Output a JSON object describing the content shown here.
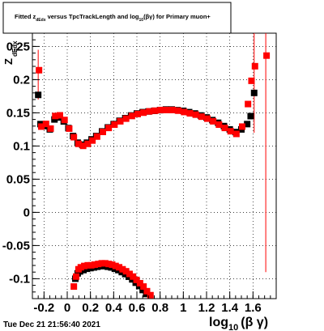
{
  "chart_data": {
    "type": "scatter",
    "title_parts": [
      "Fitted  z",
      "dEdx",
      "  versus TpcTrackLength and log",
      "10",
      "(βγ) for Primary muon+"
    ],
    "xlabel_main": "log",
    "xlabel_sub": "10",
    "xlabel_tail": "(β γ)",
    "ylabel_main": "Z",
    "ylabel_sub": "dEdx",
    "xlim": [
      -0.3,
      1.8
    ],
    "ylim": [
      -0.13,
      0.27
    ],
    "x_ticks": [
      "-0.2",
      "0",
      "0.2",
      "0.4",
      "0.6",
      "0.8",
      "1",
      "1.2",
      "1.4",
      "1.6"
    ],
    "x_tick_values": [
      -0.2,
      0,
      0.2,
      0.4,
      0.6,
      0.8,
      1.0,
      1.2,
      1.4,
      1.6
    ],
    "y_ticks": [
      "-0.1",
      "-0.05",
      "0",
      "0.05",
      "0.1",
      "0.15",
      "0.2",
      "0.25"
    ],
    "y_tick_values": [
      -0.1,
      -0.05,
      0,
      0.05,
      0.1,
      0.15,
      0.2,
      0.25
    ],
    "grid": true,
    "series": [
      {
        "color": "#000000",
        "points": [
          [
            -0.25,
            0.177
          ],
          [
            -0.23,
            0.133
          ],
          [
            -0.19,
            0.13
          ],
          [
            -0.15,
            0.125
          ],
          [
            -0.11,
            0.14
          ],
          [
            -0.07,
            0.143
          ],
          [
            -0.03,
            0.137
          ],
          [
            0.01,
            0.127
          ],
          [
            0.05,
            0.115
          ],
          [
            0.09,
            0.105
          ],
          [
            0.13,
            0.102
          ],
          [
            0.17,
            0.105
          ],
          [
            0.21,
            0.11
          ],
          [
            0.25,
            0.115
          ],
          [
            0.3,
            0.122
          ],
          [
            0.35,
            0.128
          ],
          [
            0.4,
            0.133
          ],
          [
            0.45,
            0.138
          ],
          [
            0.5,
            0.142
          ],
          [
            0.55,
            0.146
          ],
          [
            0.6,
            0.149
          ],
          [
            0.65,
            0.151
          ],
          [
            0.7,
            0.152
          ],
          [
            0.75,
            0.153
          ],
          [
            0.8,
            0.154
          ],
          [
            0.85,
            0.155
          ],
          [
            0.9,
            0.155
          ],
          [
            0.95,
            0.154
          ],
          [
            1.0,
            0.153
          ],
          [
            1.05,
            0.151
          ],
          [
            1.1,
            0.149
          ],
          [
            1.15,
            0.146
          ],
          [
            1.2,
            0.143
          ],
          [
            1.25,
            0.139
          ],
          [
            1.3,
            0.135
          ],
          [
            1.35,
            0.13
          ],
          [
            1.4,
            0.125
          ],
          [
            1.45,
            0.121
          ],
          [
            1.5,
            0.125
          ],
          [
            1.55,
            0.133
          ],
          [
            1.58,
            0.145
          ],
          [
            1.61,
            0.18
          ],
          [
            0.07,
            -0.1
          ],
          [
            0.09,
            -0.092
          ],
          [
            0.11,
            -0.089
          ],
          [
            0.14,
            -0.087
          ],
          [
            0.17,
            -0.085
          ],
          [
            0.2,
            -0.084
          ],
          [
            0.23,
            -0.083
          ],
          [
            0.26,
            -0.082
          ],
          [
            0.29,
            -0.081
          ],
          [
            0.32,
            -0.081
          ],
          [
            0.35,
            -0.082
          ],
          [
            0.38,
            -0.083
          ],
          [
            0.41,
            -0.085
          ],
          [
            0.44,
            -0.087
          ],
          [
            0.47,
            -0.09
          ],
          [
            0.5,
            -0.093
          ],
          [
            0.53,
            -0.097
          ],
          [
            0.56,
            -0.101
          ],
          [
            0.59,
            -0.106
          ],
          [
            0.62,
            -0.111
          ],
          [
            0.65,
            -0.117
          ],
          [
            0.68,
            -0.123
          ]
        ]
      },
      {
        "color": "#ff0000",
        "points": [
          [
            -0.25,
            0.213
          ],
          [
            -0.23,
            0.128
          ],
          [
            -0.19,
            0.132
          ],
          [
            -0.15,
            0.125
          ],
          [
            -0.11,
            0.144
          ],
          [
            -0.07,
            0.145
          ],
          [
            -0.03,
            0.138
          ],
          [
            0.01,
            0.125
          ],
          [
            0.05,
            0.112
          ],
          [
            0.09,
            0.102
          ],
          [
            0.13,
            0.099
          ],
          [
            0.17,
            0.102
          ],
          [
            0.21,
            0.107
          ],
          [
            0.25,
            0.113
          ],
          [
            0.3,
            0.12
          ],
          [
            0.35,
            0.126
          ],
          [
            0.4,
            0.131
          ],
          [
            0.45,
            0.136
          ],
          [
            0.5,
            0.14
          ],
          [
            0.55,
            0.144
          ],
          [
            0.6,
            0.147
          ],
          [
            0.65,
            0.149
          ],
          [
            0.7,
            0.151
          ],
          [
            0.75,
            0.152
          ],
          [
            0.8,
            0.153
          ],
          [
            0.85,
            0.153
          ],
          [
            0.9,
            0.153
          ],
          [
            0.95,
            0.152
          ],
          [
            1.0,
            0.15
          ],
          [
            1.05,
            0.148
          ],
          [
            1.1,
            0.146
          ],
          [
            1.15,
            0.143
          ],
          [
            1.2,
            0.14
          ],
          [
            1.25,
            0.136
          ],
          [
            1.3,
            0.131
          ],
          [
            1.35,
            0.126
          ],
          [
            1.4,
            0.121
          ],
          [
            1.45,
            0.117
          ],
          [
            1.5,
            0.128
          ],
          [
            1.55,
            0.162
          ],
          [
            1.58,
            0.197
          ],
          [
            1.61,
            0.219
          ],
          [
            1.71,
            0.235
          ],
          [
            0.05,
            -0.113
          ],
          [
            0.07,
            -0.098
          ],
          [
            0.09,
            -0.087
          ],
          [
            0.11,
            -0.084
          ],
          [
            0.14,
            -0.082
          ],
          [
            0.17,
            -0.081
          ],
          [
            0.2,
            -0.081
          ],
          [
            0.23,
            -0.08
          ],
          [
            0.26,
            -0.079
          ],
          [
            0.29,
            -0.078
          ],
          [
            0.32,
            -0.078
          ],
          [
            0.35,
            -0.079
          ],
          [
            0.38,
            -0.08
          ],
          [
            0.41,
            -0.082
          ],
          [
            0.44,
            -0.084
          ],
          [
            0.47,
            -0.087
          ],
          [
            0.5,
            -0.09
          ],
          [
            0.53,
            -0.094
          ],
          [
            0.56,
            -0.098
          ],
          [
            0.59,
            -0.103
          ],
          [
            0.62,
            -0.108
          ],
          [
            0.65,
            -0.113
          ],
          [
            0.68,
            -0.12
          ],
          [
            0.71,
            -0.126
          ]
        ]
      }
    ],
    "error_bars": [
      {
        "color": "#ff0000",
        "x": -0.25,
        "low": 0.17,
        "high": 0.245
      },
      {
        "color": "#ff0000",
        "x": 1.61,
        "low": 0.12,
        "high": 0.28
      },
      {
        "color": "#ff0000",
        "x": 1.71,
        "low": -0.09,
        "high": 0.28
      }
    ]
  },
  "footer": {
    "timestamp": "Tue Dec 21 21:56:40 2021"
  }
}
